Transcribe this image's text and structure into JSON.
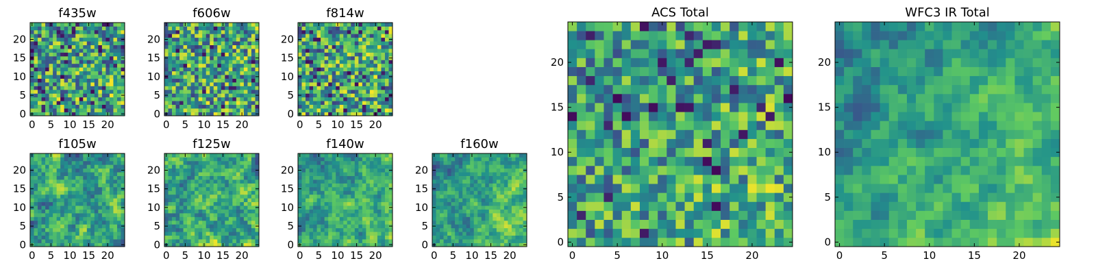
{
  "figure": {
    "description_note": "Grid of 2D pixel heatmaps (25x25, viridis colormap) for individual filters and combined totals"
  },
  "colors": {
    "viridis_stops": [
      "#440154",
      "#3b528b",
      "#21918c",
      "#5ec962",
      "#fde725"
    ]
  },
  "chart_data": [
    {
      "type": "heatmap",
      "title": "f435w",
      "grid_size": 25,
      "xlim": [
        -0.5,
        24.5
      ],
      "ylim": [
        -0.5,
        24.5
      ],
      "xticks": [
        0,
        5,
        10,
        15,
        20
      ],
      "yticks": [
        0,
        5,
        10,
        15,
        20
      ],
      "texture": "noisy",
      "seed": 11,
      "trend": 0.05
    },
    {
      "type": "heatmap",
      "title": "f606w",
      "grid_size": 25,
      "xlim": [
        -0.5,
        24.5
      ],
      "ylim": [
        -0.5,
        24.5
      ],
      "xticks": [
        0,
        5,
        10,
        15,
        20
      ],
      "yticks": [
        0,
        5,
        10,
        15,
        20
      ],
      "texture": "noisy",
      "seed": 23,
      "trend": 0.05
    },
    {
      "type": "heatmap",
      "title": "f814w",
      "grid_size": 25,
      "xlim": [
        -0.5,
        24.5
      ],
      "ylim": [
        -0.5,
        24.5
      ],
      "xticks": [
        0,
        5,
        10,
        15,
        20
      ],
      "yticks": [
        0,
        5,
        10,
        15,
        20
      ],
      "texture": "noisy",
      "seed": 37,
      "trend": 0.05
    },
    {
      "type": "heatmap",
      "title": "f105w",
      "grid_size": 25,
      "xlim": [
        -0.5,
        24.5
      ],
      "ylim": [
        -0.5,
        24.5
      ],
      "xticks": [
        0,
        5,
        10,
        15,
        20
      ],
      "yticks": [
        0,
        5,
        10,
        15,
        20
      ],
      "texture": "smooth",
      "seed": 41,
      "trend": 0.1
    },
    {
      "type": "heatmap",
      "title": "f125w",
      "grid_size": 25,
      "xlim": [
        -0.5,
        24.5
      ],
      "ylim": [
        -0.5,
        24.5
      ],
      "xticks": [
        0,
        5,
        10,
        15,
        20
      ],
      "yticks": [
        0,
        5,
        10,
        15,
        20
      ],
      "texture": "smooth",
      "seed": 53,
      "trend": 0.1
    },
    {
      "type": "heatmap",
      "title": "f140w",
      "grid_size": 25,
      "xlim": [
        -0.5,
        24.5
      ],
      "ylim": [
        -0.5,
        24.5
      ],
      "xticks": [
        0,
        5,
        10,
        15,
        20
      ],
      "yticks": [
        0,
        5,
        10,
        15,
        20
      ],
      "texture": "smooth",
      "seed": 67,
      "trend": 0.3
    },
    {
      "type": "heatmap",
      "title": "f160w",
      "grid_size": 25,
      "xlim": [
        -0.5,
        24.5
      ],
      "ylim": [
        -0.5,
        24.5
      ],
      "xticks": [
        0,
        5,
        10,
        15,
        20
      ],
      "yticks": [
        0,
        5,
        10,
        15,
        20
      ],
      "texture": "smooth",
      "seed": 79,
      "trend": 0.35
    },
    {
      "type": "heatmap",
      "title": "ACS Total",
      "grid_size": 25,
      "xlim": [
        -0.5,
        24.5
      ],
      "ylim": [
        -0.5,
        24.5
      ],
      "xticks": [
        0,
        5,
        10,
        15,
        20
      ],
      "yticks": [
        0,
        5,
        10,
        15,
        20
      ],
      "texture": "noisy",
      "seed": 97,
      "trend": 0.2
    },
    {
      "type": "heatmap",
      "title": "WFC3 IR Total",
      "grid_size": 25,
      "xlim": [
        -0.5,
        24.5
      ],
      "ylim": [
        -0.5,
        24.5
      ],
      "xticks": [
        0,
        5,
        10,
        15,
        20
      ],
      "yticks": [
        0,
        5,
        10,
        15,
        20
      ],
      "texture": "smooth",
      "seed": 113,
      "trend": 0.45
    }
  ]
}
